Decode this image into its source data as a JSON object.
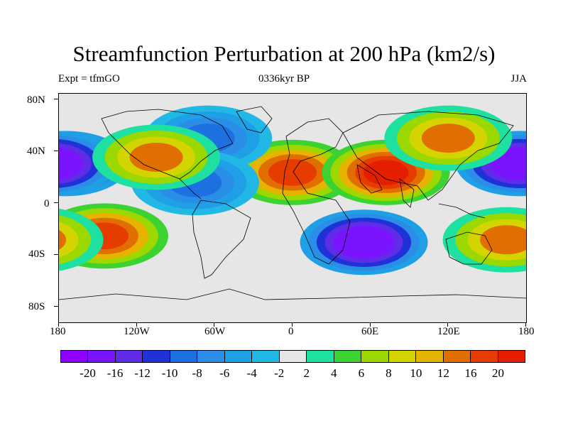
{
  "title": "Streamfunction Perturbation at 200 hPa (km2/s)",
  "subtitle_left": "Expt = tfmGO",
  "subtitle_center": "0336kyr BP",
  "subtitle_right": "JJA",
  "axes": {
    "y_labels": [
      "80N",
      "40N",
      "0",
      "40S",
      "80S"
    ],
    "x_labels": [
      "180",
      "120W",
      "60W",
      "0",
      "60E",
      "120E",
      "180"
    ]
  },
  "colorbar": {
    "labels": [
      "-20",
      "-16",
      "-12",
      "-10",
      "-8",
      "-6",
      "-4",
      "-2",
      "2",
      "4",
      "6",
      "8",
      "10",
      "12",
      "16",
      "20"
    ],
    "colors": [
      "#9000ff",
      "#7a14ff",
      "#5f2ce8",
      "#1f32d8",
      "#1e6fe0",
      "#2b8ee6",
      "#1fa0e6",
      "#22b8e6",
      "#e6e6e6",
      "#1ee0a0",
      "#3cd232",
      "#9ad800",
      "#d4d400",
      "#e6b400",
      "#e06e00",
      "#e63c00",
      "#e61e00"
    ]
  },
  "map": {
    "background_color": "#e6e6e6",
    "regions": [
      {
        "name": "subtropical high north africa",
        "level": 16,
        "lon": 0,
        "lat": 28
      },
      {
        "name": "tibetan high",
        "level": 20,
        "lon": 72,
        "lat": 28
      },
      {
        "name": "north pacific low",
        "level": -20,
        "lon": -175,
        "lat": 35
      },
      {
        "name": "northwest pacific low",
        "level": -20,
        "lon": 175,
        "lat": 35
      },
      {
        "name": "south pacific high",
        "level": 16,
        "lon": -145,
        "lat": -22
      },
      {
        "name": "indian ocean low",
        "level": -20,
        "lon": 55,
        "lat": -27
      },
      {
        "name": "south of australia high",
        "level": 12,
        "lon": 165,
        "lat": -25
      },
      {
        "name": "north america low",
        "level": -10,
        "lon": -65,
        "lat": 55
      },
      {
        "name": "caribbean low",
        "level": -10,
        "lon": -75,
        "lat": 20
      },
      {
        "name": "rockies high",
        "level": 12,
        "lon": -105,
        "lat": 40
      },
      {
        "name": "east asia high",
        "level": 12,
        "lon": 120,
        "lat": 55
      }
    ]
  }
}
